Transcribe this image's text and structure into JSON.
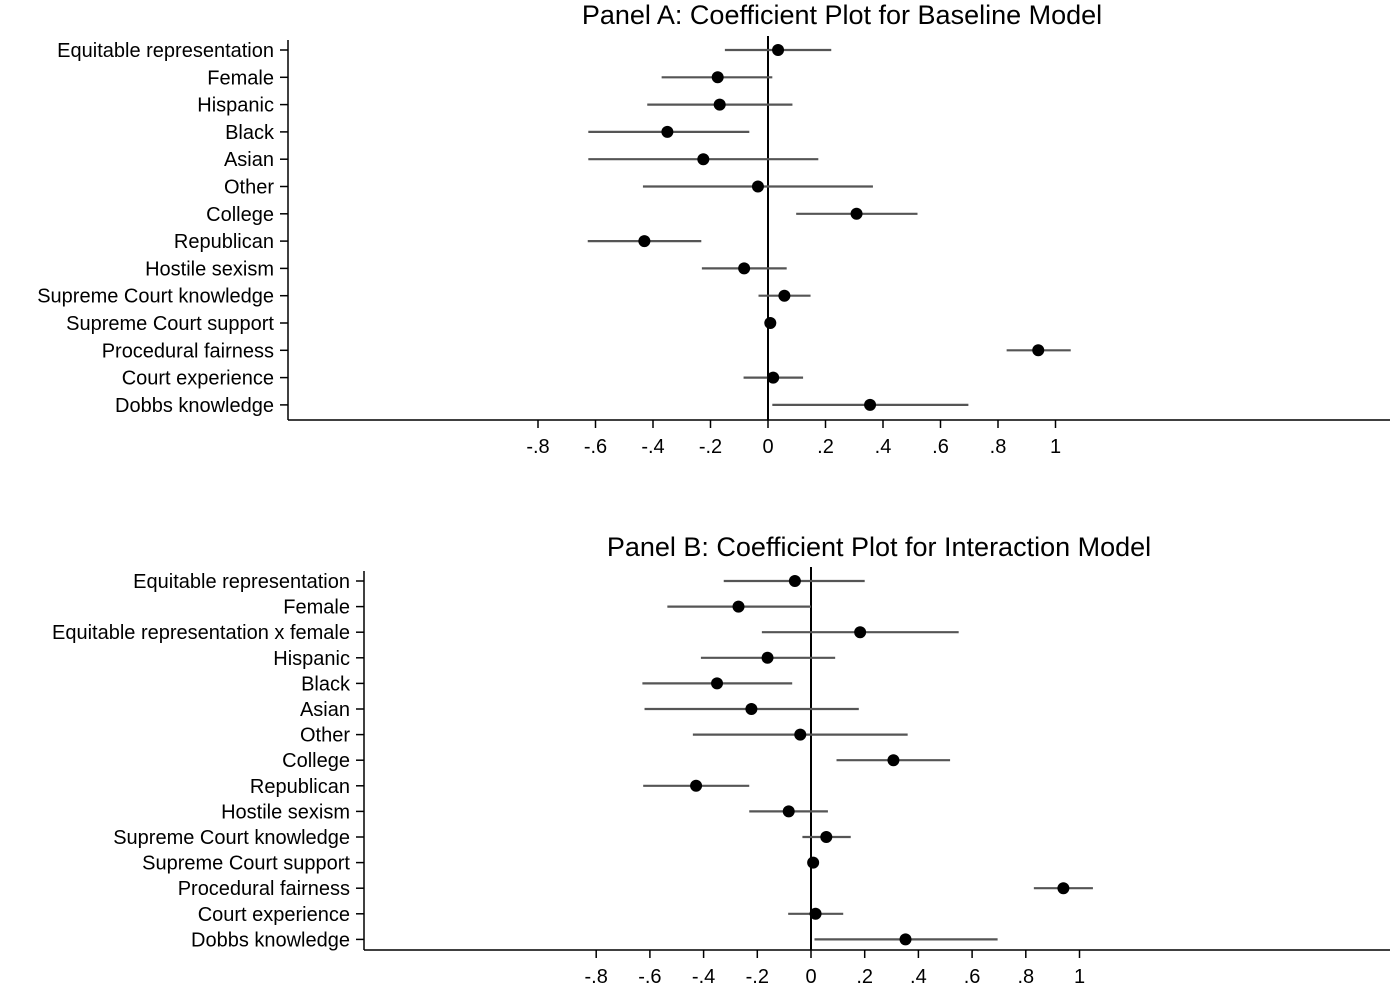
{
  "chart_data": [
    {
      "type": "coefficient-plot",
      "title": "Panel A: Coefficient Plot for Baseline Model",
      "xlim": [
        -0.8,
        1.0
      ],
      "xticks": [
        -0.8,
        -0.6,
        -0.4,
        -0.2,
        0,
        0.2,
        0.4,
        0.6,
        0.8,
        1.0
      ],
      "xtick_labels": [
        "-.8",
        "-.6",
        "-.4",
        "-.2",
        "0",
        ".2",
        ".4",
        ".6",
        ".8",
        "1"
      ],
      "reference_line": 0,
      "color_point": "#000000",
      "color_ci": "#555555",
      "rows": [
        {
          "label": "Equitable representation",
          "estimate": 0.035,
          "ci_low": -0.15,
          "ci_high": 0.22
        },
        {
          "label": "Female",
          "estimate": -0.175,
          "ci_low": -0.37,
          "ci_high": 0.015
        },
        {
          "label": "Hispanic",
          "estimate": -0.168,
          "ci_low": -0.42,
          "ci_high": 0.085
        },
        {
          "label": "Black",
          "estimate": -0.35,
          "ci_low": -0.625,
          "ci_high": -0.065
        },
        {
          "label": "Asian",
          "estimate": -0.225,
          "ci_low": -0.625,
          "ci_high": 0.175
        },
        {
          "label": "Other",
          "estimate": -0.035,
          "ci_low": -0.435,
          "ci_high": 0.365
        },
        {
          "label": "College",
          "estimate": 0.308,
          "ci_low": 0.098,
          "ci_high": 0.52
        },
        {
          "label": "Republican",
          "estimate": -0.43,
          "ci_low": -0.627,
          "ci_high": -0.232
        },
        {
          "label": "Hostile sexism",
          "estimate": -0.083,
          "ci_low": -0.23,
          "ci_high": 0.065
        },
        {
          "label": "Supreme Court knowledge",
          "estimate": 0.057,
          "ci_low": -0.033,
          "ci_high": 0.148
        },
        {
          "label": "Supreme Court support",
          "estimate": 0.008,
          "ci_low": 0.001,
          "ci_high": 0.015
        },
        {
          "label": "Procedural fairness",
          "estimate": 0.94,
          "ci_low": 0.83,
          "ci_high": 1.053
        },
        {
          "label": "Court experience",
          "estimate": 0.018,
          "ci_low": -0.085,
          "ci_high": 0.122
        },
        {
          "label": "Dobbs knowledge",
          "estimate": 0.355,
          "ci_low": 0.015,
          "ci_high": 0.697
        }
      ]
    },
    {
      "type": "coefficient-plot",
      "title": "Panel B: Coefficient Plot for Interaction Model",
      "xlim": [
        -0.8,
        1.0
      ],
      "xticks": [
        -0.8,
        -0.6,
        -0.4,
        -0.2,
        0,
        0.2,
        0.4,
        0.6,
        0.8,
        1.0
      ],
      "xtick_labels": [
        "-.8",
        "-.6",
        "-.4",
        "-.2",
        "0",
        ".2",
        ".4",
        ".6",
        ".8",
        "1"
      ],
      "reference_line": 0,
      "color_point": "#000000",
      "color_ci": "#555555",
      "rows": [
        {
          "label": "Equitable representation",
          "estimate": -0.06,
          "ci_low": -0.325,
          "ci_high": 0.2
        },
        {
          "label": "Female",
          "estimate": -0.27,
          "ci_low": -0.535,
          "ci_high": 0.0
        },
        {
          "label": "Equitable representation x female",
          "estimate": 0.183,
          "ci_low": -0.183,
          "ci_high": 0.55
        },
        {
          "label": "Hispanic",
          "estimate": -0.162,
          "ci_low": -0.41,
          "ci_high": 0.09
        },
        {
          "label": "Black",
          "estimate": -0.35,
          "ci_low": -0.628,
          "ci_high": -0.07
        },
        {
          "label": "Asian",
          "estimate": -0.222,
          "ci_low": -0.62,
          "ci_high": 0.178
        },
        {
          "label": "Other",
          "estimate": -0.04,
          "ci_low": -0.44,
          "ci_high": 0.36
        },
        {
          "label": "College",
          "estimate": 0.307,
          "ci_low": 0.095,
          "ci_high": 0.518
        },
        {
          "label": "Republican",
          "estimate": -0.428,
          "ci_low": -0.625,
          "ci_high": -0.23
        },
        {
          "label": "Hostile sexism",
          "estimate": -0.083,
          "ci_low": -0.23,
          "ci_high": 0.063
        },
        {
          "label": "Supreme Court knowledge",
          "estimate": 0.057,
          "ci_low": -0.032,
          "ci_high": 0.148
        },
        {
          "label": "Supreme Court support",
          "estimate": 0.008,
          "ci_low": 0.001,
          "ci_high": 0.015
        },
        {
          "label": "Procedural fairness",
          "estimate": 0.94,
          "ci_low": 0.83,
          "ci_high": 1.05
        },
        {
          "label": "Court experience",
          "estimate": 0.017,
          "ci_low": -0.085,
          "ci_high": 0.12
        },
        {
          "label": "Dobbs knowledge",
          "estimate": 0.352,
          "ci_low": 0.013,
          "ci_high": 0.695
        }
      ]
    }
  ]
}
